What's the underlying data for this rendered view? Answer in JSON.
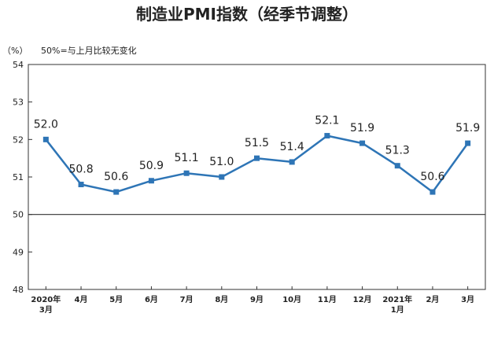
{
  "chart_data": {
    "type": "line",
    "title": "制造业PMI指数（经季节调整）",
    "unit_label": "（%）",
    "note": "50%=与上月比较无变化",
    "categories": [
      [
        "2020年",
        "3月"
      ],
      [
        "4月"
      ],
      [
        "5月"
      ],
      [
        "6月"
      ],
      [
        "7月"
      ],
      [
        "8月"
      ],
      [
        "9月"
      ],
      [
        "10月"
      ],
      [
        "11月"
      ],
      [
        "12月"
      ],
      [
        "2021年",
        "1月"
      ],
      [
        "2月"
      ],
      [
        "3月"
      ]
    ],
    "values": [
      52.0,
      50.8,
      50.6,
      50.9,
      51.1,
      51.0,
      51.5,
      51.4,
      52.1,
      51.9,
      51.3,
      50.6,
      51.9
    ],
    "data_labels": [
      "52.0",
      "50.8",
      "50.6",
      "50.9",
      "51.1",
      "51.0",
      "51.5",
      "51.4",
      "52.1",
      "51.9",
      "51.3",
      "50.6",
      "51.9"
    ],
    "yticks": [
      54,
      53,
      52,
      51,
      50,
      49,
      48
    ],
    "ylim": [
      48,
      54
    ],
    "reference_line": 50,
    "grid": false,
    "color": "#2e75b6"
  }
}
